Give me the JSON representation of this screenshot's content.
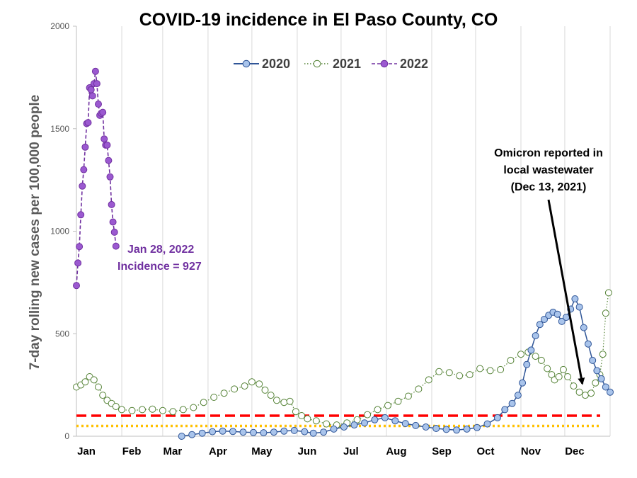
{
  "chart_data": {
    "type": "line",
    "title": "COVID-19 incidence in El Paso County, CO",
    "xlabel": "",
    "ylabel": "7-day rolling new cases per 100,000 people",
    "ylim": [
      0,
      2000
    ],
    "yticks": [
      0,
      500,
      1000,
      1500,
      2000
    ],
    "xlim": [
      1,
      366
    ],
    "months": [
      {
        "label": "Jan",
        "day": 1
      },
      {
        "label": "Feb",
        "day": 32
      },
      {
        "label": "Mar",
        "day": 60
      },
      {
        "label": "Apr",
        "day": 91
      },
      {
        "label": "May",
        "day": 121
      },
      {
        "label": "Jun",
        "day": 152
      },
      {
        "label": "Jul",
        "day": 182
      },
      {
        "label": "Aug",
        "day": 213
      },
      {
        "label": "Sep",
        "day": 244
      },
      {
        "label": "Oct",
        "day": 274
      },
      {
        "label": "Nov",
        "day": 305
      },
      {
        "label": "Dec",
        "day": 335
      }
    ],
    "grid": "vertical",
    "legend_position": "top-center",
    "reference_lines": [
      {
        "value": 100,
        "color": "#ff0000",
        "style": "dashed"
      },
      {
        "value": 50,
        "color": "#ffc000",
        "style": "dotted"
      }
    ],
    "series": [
      {
        "name": "2020",
        "color": "#2f5597",
        "fill": "#a9c4eb",
        "line_style": "solid",
        "x": [
          73,
          80,
          87,
          94,
          101,
          108,
          115,
          122,
          129,
          136,
          143,
          150,
          157,
          163,
          170,
          177,
          184,
          191,
          198,
          205,
          212,
          219,
          226,
          233,
          240,
          247,
          254,
          261,
          268,
          275,
          282,
          289,
          294,
          299,
          303,
          306,
          309,
          312,
          315,
          318,
          321,
          324,
          327,
          330,
          333,
          336,
          339,
          342,
          345,
          348,
          351,
          354,
          357,
          360,
          363,
          366
        ],
        "values": [
          0,
          8,
          15,
          22,
          25,
          23,
          20,
          18,
          17,
          20,
          25,
          28,
          22,
          15,
          20,
          35,
          45,
          55,
          65,
          80,
          90,
          75,
          62,
          52,
          45,
          38,
          33,
          30,
          35,
          42,
          60,
          90,
          130,
          160,
          200,
          260,
          350,
          420,
          490,
          545,
          570,
          590,
          605,
          595,
          560,
          580,
          620,
          670,
          630,
          530,
          450,
          370,
          320,
          280,
          240,
          215
        ]
      },
      {
        "name": "2021",
        "color": "#548235",
        "fill": "#ffffff",
        "line_style": "dotted",
        "x": [
          1,
          4,
          7,
          10,
          13,
          16,
          19,
          22,
          25,
          28,
          32,
          39,
          46,
          53,
          60,
          67,
          74,
          81,
          88,
          95,
          102,
          109,
          116,
          121,
          126,
          130,
          134,
          138,
          143,
          147,
          151,
          155,
          159,
          165,
          172,
          179,
          186,
          193,
          200,
          207,
          214,
          221,
          228,
          235,
          242,
          249,
          256,
          263,
          270,
          277,
          284,
          291,
          298,
          305,
          310,
          315,
          319,
          323,
          326,
          328,
          331,
          334,
          337,
          341,
          345,
          349,
          353,
          356,
          359,
          361,
          363,
          365
        ],
        "values": [
          240,
          250,
          265,
          290,
          275,
          240,
          200,
          175,
          160,
          145,
          130,
          125,
          130,
          132,
          125,
          120,
          130,
          140,
          165,
          190,
          210,
          230,
          245,
          265,
          255,
          225,
          200,
          175,
          165,
          170,
          120,
          100,
          85,
          75,
          60,
          55,
          65,
          80,
          105,
          130,
          150,
          170,
          195,
          230,
          275,
          315,
          310,
          295,
          300,
          330,
          320,
          325,
          370,
          400,
          410,
          390,
          370,
          330,
          300,
          275,
          290,
          325,
          290,
          245,
          215,
          200,
          210,
          260,
          300,
          400,
          600,
          700
        ]
      },
      {
        "name": "2022",
        "color": "#7030a0",
        "fill": "#9b59d0",
        "line_style": "dashed",
        "x": [
          1,
          2,
          3,
          4,
          5,
          6,
          7,
          8,
          9,
          10,
          11,
          12,
          13,
          14,
          15,
          16,
          17,
          18,
          19,
          20,
          21,
          22,
          23,
          24,
          25,
          26,
          27,
          28
        ],
        "values": [
          735,
          845,
          925,
          1080,
          1220,
          1300,
          1410,
          1525,
          1530,
          1700,
          1690,
          1660,
          1720,
          1780,
          1720,
          1620,
          1565,
          1575,
          1580,
          1450,
          1420,
          1420,
          1345,
          1265,
          1130,
          1045,
          995,
          927
        ]
      }
    ],
    "annotations": [
      {
        "id": "jan28",
        "lines": [
          "Jan 28, 2022",
          "Incidence = 927"
        ],
        "color": "#7030a0"
      },
      {
        "id": "omicron",
        "lines": [
          "Omicron reported in",
          "local wastewater",
          "(Dec 13, 2021)"
        ],
        "color": "#000000",
        "arrow_to": {
          "x": 347,
          "value": 215
        }
      }
    ]
  }
}
